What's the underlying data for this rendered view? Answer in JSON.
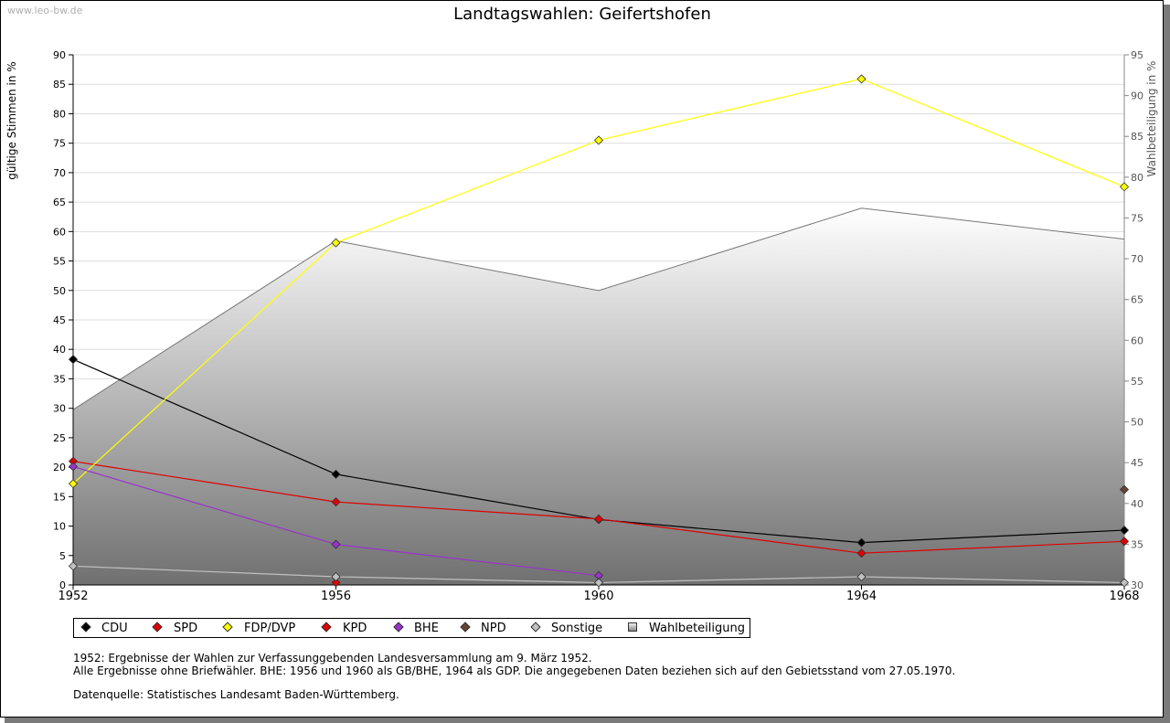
{
  "watermark": "www.leo-bw.de",
  "chart_data": {
    "type": "line",
    "title": "Landtagswahlen: Geifertshofen",
    "ylabel": "gültige Stimmen in %",
    "y2label": "Wahlbeteiligung in %",
    "x": [
      "1952",
      "1956",
      "1960",
      "1964",
      "1968"
    ],
    "ylim": [
      0,
      90
    ],
    "y2lim": [
      30,
      95
    ],
    "yticks": [
      "0",
      "5",
      "10",
      "15",
      "20",
      "25",
      "30",
      "35",
      "40",
      "45",
      "50",
      "55",
      "60",
      "65",
      "70",
      "75",
      "80",
      "85",
      "90"
    ],
    "y2ticks": [
      "30",
      "35",
      "40",
      "45",
      "50",
      "55",
      "60",
      "65",
      "70",
      "75",
      "80",
      "85",
      "90",
      "95"
    ],
    "grid": true,
    "series": [
      {
        "name": "CDU",
        "color": "#000000",
        "values": [
          38.3,
          18.8,
          11.1,
          7.2,
          9.3
        ]
      },
      {
        "name": "SPD",
        "color": "#e00000",
        "values": [
          21.0,
          14.1,
          11.2,
          5.4,
          7.4
        ]
      },
      {
        "name": "FDP/DVP",
        "color": "#ffff00",
        "values": [
          17.2,
          58.1,
          75.5,
          85.9,
          67.6
        ]
      },
      {
        "name": "KPD",
        "color": "#e00000",
        "values": [
          null,
          0.4,
          null,
          null,
          null
        ]
      },
      {
        "name": "BHE",
        "color": "#9933cc",
        "values": [
          20.1,
          6.9,
          1.6,
          null,
          null
        ]
      },
      {
        "name": "NPD",
        "color": "#664433",
        "values": [
          null,
          null,
          null,
          null,
          16.2
        ]
      },
      {
        "name": "Sonstige",
        "color": "#c0c0c0",
        "values": [
          3.2,
          1.4,
          0.4,
          1.4,
          0.4
        ]
      }
    ],
    "turnout": {
      "name": "Wahlbeteiligung",
      "axis": "right",
      "values": [
        51.5,
        72.2,
        66.1,
        76.2,
        72.4
      ]
    },
    "legend": [
      "CDU",
      "SPD",
      "FDP/DVP",
      "KPD",
      "BHE",
      "NPD",
      "Sonstige",
      "Wahlbeteiligung"
    ],
    "legend_placement": "bottom-left"
  },
  "notes": {
    "line1": "1952: Ergebnisse der Wahlen zur Verfassunggebenden Landesversammlung am 9. März 1952.",
    "line2": "Alle Ergebnisse ohne Briefwähler. BHE: 1956 und 1960 als GB/BHE, 1964 als GDP. Die angegebenen Daten beziehen sich auf den Gebietsstand vom 27.05.1970.",
    "source": "Datenquelle: Statistisches Landesamt Baden-Württemberg."
  }
}
